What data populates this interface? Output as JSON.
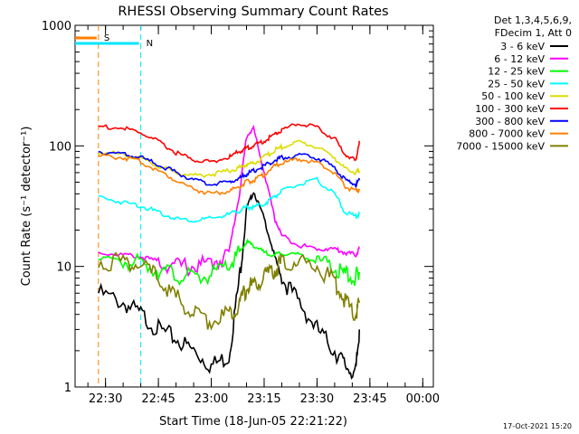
{
  "chart_data": {
    "type": "line",
    "title": "RHESSI Observing Summary Count Rates",
    "xlabel": "Start Time (18-Jun-05 22:21:22)",
    "ylabel": "Count Rate (s⁻¹ detector⁻¹)",
    "yscale": "log",
    "ylim": [
      1,
      1000
    ],
    "xlim": [
      "22:21:22",
      "00:03:00"
    ],
    "x_ticks": [
      "22:30",
      "22:45",
      "23:00",
      "23:15",
      "23:30",
      "23:45",
      "00:00"
    ],
    "y_ticks": [
      "1",
      "10",
      "100",
      "1000"
    ],
    "grid": false,
    "legend_position": "top-right outside",
    "legend_header": [
      "Det 1,3,4,5,6,9,",
      "FDecim 1, Att 0"
    ],
    "footer_date": "17-Oct-2021 15:20",
    "markers": [
      {
        "label": "S",
        "color": "#ff8000",
        "style": "dashed",
        "x": "22:28"
      },
      {
        "label": "N",
        "color": "#00e5ff",
        "style": "dashed",
        "x": "22:40"
      }
    ],
    "x_sample_times": [
      "22:28",
      "22:35",
      "22:40",
      "22:45",
      "22:50",
      "22:55",
      "23:00",
      "23:05",
      "23:08",
      "23:10",
      "23:12",
      "23:15",
      "23:18",
      "23:20",
      "23:25",
      "23:30",
      "23:35",
      "23:38",
      "23:41",
      "23:42"
    ],
    "series": [
      {
        "name": "3 - 6 keV",
        "color": "#000000",
        "values": [
          6,
          5,
          4,
          3,
          2.5,
          2,
          1.5,
          1.8,
          8,
          30,
          42,
          25,
          12,
          8,
          5,
          3,
          2,
          1.5,
          1.3,
          3
        ]
      },
      {
        "name": "6 - 12 keV",
        "color": "#ff00ff",
        "values": [
          13,
          12.5,
          12,
          11,
          10,
          10,
          10.5,
          13,
          40,
          120,
          140,
          60,
          25,
          18,
          15,
          14,
          14,
          13,
          12.5,
          14
        ]
      },
      {
        "name": "12 - 25 keV",
        "color": "#00ff00",
        "values": [
          12,
          11,
          10.5,
          9.5,
          8.5,
          8,
          8.5,
          10,
          13,
          16,
          15,
          13,
          12.5,
          13,
          12.5,
          11,
          9.5,
          8.5,
          8,
          9
        ]
      },
      {
        "name": "25 - 50 keV",
        "color": "#00ffff",
        "values": [
          38,
          34,
          32,
          28,
          25,
          24,
          25,
          27,
          29,
          31,
          31,
          33,
          38,
          42,
          48,
          52,
          40,
          28,
          26,
          27
        ]
      },
      {
        "name": "50 - 100 keV",
        "color": "#dddd00",
        "values": [
          88,
          85,
          78,
          68,
          60,
          57,
          58,
          62,
          66,
          70,
          72,
          80,
          92,
          98,
          108,
          98,
          80,
          64,
          60,
          62
        ]
      },
      {
        "name": "100 - 300 keV",
        "color": "#ff0000",
        "values": [
          145,
          140,
          128,
          108,
          88,
          76,
          74,
          80,
          90,
          96,
          100,
          110,
          125,
          135,
          155,
          140,
          115,
          85,
          75,
          110
        ]
      },
      {
        "name": "300 - 800 keV",
        "color": "#0000ff",
        "values": [
          90,
          85,
          80,
          70,
          60,
          52,
          48,
          50,
          54,
          58,
          62,
          68,
          76,
          80,
          84,
          80,
          66,
          52,
          48,
          52
        ]
      },
      {
        "name": "800 - 7000 keV",
        "color": "#ff8000",
        "values": [
          82,
          80,
          74,
          62,
          52,
          44,
          40,
          42,
          46,
          50,
          52,
          58,
          68,
          72,
          78,
          72,
          60,
          46,
          42,
          44
        ]
      },
      {
        "name": "7000 - 15000 keV",
        "color": "#808000",
        "values": [
          11,
          11,
          10,
          8,
          5.5,
          4,
          3.5,
          4,
          5,
          6.5,
          7,
          8,
          9.5,
          10.5,
          11,
          10,
          7.5,
          5,
          4,
          5
        ]
      }
    ]
  }
}
